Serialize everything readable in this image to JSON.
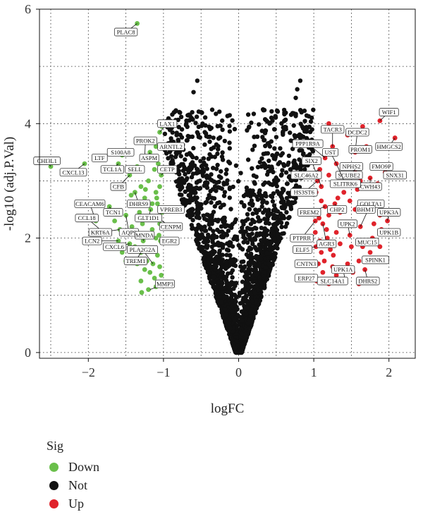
{
  "chart_data": {
    "type": "scatter",
    "xlabel": "logFC",
    "ylabel": "-log10 (adj.P.Val)",
    "xlim": [
      -2.65,
      2.35
    ],
    "ylim": [
      -0.1,
      6.0
    ],
    "xticks": [
      "−2",
      "−1",
      "0",
      "1",
      "2"
    ],
    "xtick_values": [
      -2,
      -1,
      0,
      1,
      2
    ],
    "yticks": [
      "0",
      "2",
      "4",
      "6"
    ],
    "ytick_values": [
      0,
      2,
      4,
      6
    ],
    "grid": true,
    "legend": {
      "title": "Sig",
      "placement": "bottom-left",
      "items": [
        {
          "label": "Down",
          "color": "#6abf4b"
        },
        {
          "label": "Not",
          "color": "#111111"
        },
        {
          "label": "Up",
          "color": "#e0232b"
        }
      ]
    },
    "series": [
      {
        "name": "Down",
        "color": "#6abf4b",
        "points": [
          [
            -1.35,
            5.75
          ],
          [
            -2.5,
            3.25
          ],
          [
            -2.55,
            3.35
          ],
          [
            -2.05,
            3.3
          ],
          [
            -1.7,
            3.5
          ],
          [
            -1.6,
            3.3
          ],
          [
            -1.55,
            3.45
          ],
          [
            -1.45,
            3.1
          ],
          [
            -1.35,
            3.25
          ],
          [
            -1.25,
            3.4
          ],
          [
            -1.18,
            3.5
          ],
          [
            -1.1,
            3.6
          ],
          [
            -1.05,
            3.85
          ],
          [
            -1.02,
            3.95
          ],
          [
            -1.3,
            2.9
          ],
          [
            -1.38,
            2.8
          ],
          [
            -1.43,
            2.75
          ],
          [
            -1.4,
            2.6
          ],
          [
            -1.25,
            2.7
          ],
          [
            -1.15,
            2.6
          ],
          [
            -1.1,
            2.8
          ],
          [
            -1.05,
            2.9
          ],
          [
            -1.03,
            3.1
          ],
          [
            -1.2,
            3.0
          ],
          [
            -1.12,
            3.2
          ],
          [
            -1.07,
            3.3
          ],
          [
            -1.5,
            2.4
          ],
          [
            -1.65,
            2.3
          ],
          [
            -1.72,
            2.55
          ],
          [
            -1.8,
            2.1
          ],
          [
            -1.9,
            2.3
          ],
          [
            -1.58,
            2.15
          ],
          [
            -1.35,
            2.1
          ],
          [
            -1.28,
            2.25
          ],
          [
            -1.2,
            2.35
          ],
          [
            -1.15,
            2.15
          ],
          [
            -1.1,
            2.0
          ],
          [
            -1.05,
            2.25
          ],
          [
            -1.02,
            2.45
          ],
          [
            -1.08,
            2.6
          ],
          [
            -1.45,
            1.9
          ],
          [
            -1.3,
            1.75
          ],
          [
            -1.22,
            1.6
          ],
          [
            -1.15,
            1.8
          ],
          [
            -1.08,
            1.7
          ],
          [
            -1.05,
            1.5
          ],
          [
            -1.03,
            1.35
          ],
          [
            -1.12,
            1.3
          ],
          [
            -1.25,
            1.45
          ],
          [
            -1.35,
            1.55
          ],
          [
            -1.2,
            1.1
          ],
          [
            -1.3,
            1.25
          ],
          [
            -1.1,
            1.15
          ],
          [
            -1.5,
            1.6
          ],
          [
            -1.6,
            1.95
          ],
          [
            -1.17,
            2.5
          ],
          [
            -1.32,
            2.45
          ],
          [
            -1.42,
            2.2
          ],
          [
            -1.04,
            1.95
          ],
          [
            -1.06,
            2.05
          ],
          [
            -1.14,
            1.55
          ],
          [
            -1.27,
            1.95
          ],
          [
            -1.38,
            1.85
          ],
          [
            -1.55,
            1.75
          ],
          [
            -1.09,
            2.7
          ],
          [
            -1.24,
            2.85
          ],
          [
            -1.18,
            1.4
          ],
          [
            -1.29,
            1.05
          ],
          [
            -1.07,
            1.2
          ]
        ]
      },
      {
        "name": "Up",
        "color": "#e0232b",
        "points": [
          [
            1.88,
            4.05
          ],
          [
            2.08,
            3.75
          ],
          [
            1.65,
            3.95
          ],
          [
            1.7,
            3.6
          ],
          [
            1.55,
            3.5
          ],
          [
            1.45,
            3.8
          ],
          [
            1.2,
            4.0
          ],
          [
            1.25,
            3.6
          ],
          [
            1.15,
            3.4
          ],
          [
            1.08,
            3.2
          ],
          [
            1.05,
            3.0
          ],
          [
            1.03,
            2.8
          ],
          [
            1.1,
            2.9
          ],
          [
            1.2,
            3.1
          ],
          [
            1.3,
            3.3
          ],
          [
            1.4,
            3.1
          ],
          [
            1.55,
            3.2
          ],
          [
            1.62,
            3.0
          ],
          [
            1.75,
            3.05
          ],
          [
            1.95,
            3.15
          ],
          [
            1.85,
            2.95
          ],
          [
            1.4,
            2.8
          ],
          [
            1.28,
            2.6
          ],
          [
            1.15,
            2.55
          ],
          [
            1.05,
            2.45
          ],
          [
            1.02,
            2.3
          ],
          [
            1.12,
            2.25
          ],
          [
            1.2,
            2.4
          ],
          [
            1.35,
            2.45
          ],
          [
            1.55,
            2.5
          ],
          [
            1.72,
            2.55
          ],
          [
            1.88,
            2.4
          ],
          [
            1.8,
            2.25
          ],
          [
            1.62,
            2.2
          ],
          [
            1.48,
            2.05
          ],
          [
            1.3,
            2.1
          ],
          [
            1.18,
            2.0
          ],
          [
            1.08,
            1.95
          ],
          [
            1.03,
            1.85
          ],
          [
            1.1,
            1.75
          ],
          [
            1.22,
            1.8
          ],
          [
            1.35,
            1.9
          ],
          [
            1.5,
            1.85
          ],
          [
            1.65,
            1.85
          ],
          [
            1.78,
            2.0
          ],
          [
            1.9,
            2.15
          ],
          [
            1.98,
            2.3
          ],
          [
            1.14,
            1.6
          ],
          [
            1.06,
            1.55
          ],
          [
            1.25,
            1.5
          ],
          [
            1.45,
            1.55
          ],
          [
            1.6,
            1.6
          ],
          [
            1.75,
            1.75
          ],
          [
            1.88,
            1.85
          ],
          [
            1.12,
            1.4
          ],
          [
            1.3,
            1.35
          ],
          [
            1.52,
            1.4
          ],
          [
            1.68,
            1.45
          ],
          [
            1.04,
            1.25
          ],
          [
            1.2,
            1.2
          ],
          [
            1.42,
            1.25
          ],
          [
            1.6,
            1.2
          ],
          [
            1.1,
            2.65
          ],
          [
            1.32,
            2.7
          ],
          [
            1.48,
            2.65
          ],
          [
            1.58,
            2.85
          ],
          [
            1.02,
            2.1
          ],
          [
            1.07,
            2.35
          ],
          [
            1.17,
            2.15
          ],
          [
            1.26,
            1.7
          ]
        ]
      }
    ],
    "annotations": [
      {
        "text": "PLAC8",
        "x": -1.35,
        "y": 5.75,
        "bx": -1.5,
        "by": 5.6
      },
      {
        "text": "CHI3L1",
        "x": -2.5,
        "y": 3.25,
        "bx": -2.55,
        "by": 3.35
      },
      {
        "text": "CXCL13",
        "x": -2.05,
        "y": 3.3,
        "bx": -2.2,
        "by": 3.15
      },
      {
        "text": "LTF",
        "x": -1.75,
        "y": 3.45,
        "bx": -1.85,
        "by": 3.4
      },
      {
        "text": "S100A8",
        "x": -1.55,
        "y": 3.45,
        "bx": -1.57,
        "by": 3.5
      },
      {
        "text": "TCL1A",
        "x": -1.6,
        "y": 3.3,
        "bx": -1.68,
        "by": 3.2
      },
      {
        "text": "SELL",
        "x": -1.35,
        "y": 3.25,
        "bx": -1.38,
        "by": 3.2
      },
      {
        "text": "CFB",
        "x": -1.45,
        "y": 3.1,
        "bx": -1.6,
        "by": 2.9
      },
      {
        "text": "PROK2",
        "x": -1.25,
        "y": 3.4,
        "bx": -1.24,
        "by": 3.7
      },
      {
        "text": "ASPM",
        "x": -1.18,
        "y": 3.5,
        "bx": -1.19,
        "by": 3.4
      },
      {
        "text": "LAX1",
        "x": -1.05,
        "y": 3.85,
        "bx": -0.95,
        "by": 4.0
      },
      {
        "text": "ARNTL2",
        "x": -1.02,
        "y": 3.6,
        "bx": -0.9,
        "by": 3.6
      },
      {
        "text": "CETP",
        "x": -1.03,
        "y": 3.1,
        "bx": -0.95,
        "by": 3.2
      },
      {
        "text": "CEACAM6",
        "x": -1.9,
        "y": 2.3,
        "bx": -1.98,
        "by": 2.6
      },
      {
        "text": "CCL18",
        "x": -1.8,
        "y": 2.1,
        "bx": -2.02,
        "by": 2.35
      },
      {
        "text": "TCN1",
        "x": -1.72,
        "y": 2.55,
        "bx": -1.67,
        "by": 2.45
      },
      {
        "text": "KRT6A",
        "x": -1.58,
        "y": 2.15,
        "bx": -1.84,
        "by": 2.1
      },
      {
        "text": "AQP9",
        "x": -1.5,
        "y": 2.4,
        "bx": -1.46,
        "by": 2.1
      },
      {
        "text": "DHRS9",
        "x": -1.38,
        "y": 2.8,
        "bx": -1.33,
        "by": 2.6
      },
      {
        "text": "GLT1D1",
        "x": -1.17,
        "y": 2.5,
        "bx": -1.2,
        "by": 2.35
      },
      {
        "text": "VPREB3",
        "x": -1.05,
        "y": 2.45,
        "bx": -0.9,
        "by": 2.5
      },
      {
        "text": "CENPM",
        "x": -1.02,
        "y": 2.3,
        "bx": -0.9,
        "by": 2.2
      },
      {
        "text": "LCN2",
        "x": -1.6,
        "y": 1.95,
        "bx": -1.95,
        "by": 1.95
      },
      {
        "text": "CXCL6",
        "x": -1.45,
        "y": 1.9,
        "bx": -1.65,
        "by": 1.85
      },
      {
        "text": "MNDA",
        "x": -1.27,
        "y": 1.95,
        "bx": -1.25,
        "by": 2.05
      },
      {
        "text": "PLA2G2A",
        "x": -1.14,
        "y": 1.55,
        "bx": -1.28,
        "by": 1.8
      },
      {
        "text": "EGR2",
        "x": -1.04,
        "y": 1.95,
        "bx": -0.92,
        "by": 1.95
      },
      {
        "text": "TREM1",
        "x": -1.3,
        "y": 1.75,
        "bx": -1.37,
        "by": 1.6
      },
      {
        "text": "MMP3",
        "x": -1.18,
        "y": 1.1,
        "bx": -0.98,
        "by": 1.2
      },
      {
        "text": "WIF1",
        "x": 1.88,
        "y": 4.05,
        "bx": 2.0,
        "by": 4.2
      },
      {
        "text": "TACR3",
        "x": 1.25,
        "y": 3.6,
        "bx": 1.25,
        "by": 3.9
      },
      {
        "text": "DCDC2",
        "x": 1.55,
        "y": 3.5,
        "bx": 1.58,
        "by": 3.85
      },
      {
        "text": "HMGCS2",
        "x": 2.08,
        "y": 3.75,
        "bx": 2.0,
        "by": 3.6
      },
      {
        "text": "PPP1R9A",
        "x": 1.15,
        "y": 3.4,
        "bx": 0.92,
        "by": 3.65
      },
      {
        "text": "UST",
        "x": 1.3,
        "y": 3.3,
        "bx": 1.22,
        "by": 3.5
      },
      {
        "text": "PROM1",
        "x": 1.7,
        "y": 3.6,
        "bx": 1.62,
        "by": 3.55
      },
      {
        "text": "SIX2",
        "x": 1.1,
        "y": 2.9,
        "bx": 0.97,
        "by": 3.35
      },
      {
        "text": "NPHS2",
        "x": 1.55,
        "y": 3.2,
        "bx": 1.5,
        "by": 3.25
      },
      {
        "text": "FMO9P",
        "x": 1.95,
        "y": 3.15,
        "bx": 1.9,
        "by": 3.25
      },
      {
        "text": "SLC46A2",
        "x": 1.08,
        "y": 3.2,
        "bx": 0.9,
        "by": 3.1
      },
      {
        "text": "SCUBE2",
        "x": 1.55,
        "y": 3.2,
        "bx": 1.47,
        "by": 3.1
      },
      {
        "text": "SNX31",
        "x": 1.95,
        "y": 3.15,
        "bx": 2.08,
        "by": 3.1
      },
      {
        "text": "CWH43",
        "x": 1.75,
        "y": 3.05,
        "bx": 1.75,
        "by": 2.9
      },
      {
        "text": "SLITRK6",
        "x": 1.3,
        "y": 3.3,
        "bx": 1.42,
        "by": 2.95
      },
      {
        "text": "HS3ST6",
        "x": 1.05,
        "y": 3.0,
        "bx": 0.87,
        "by": 2.8
      },
      {
        "text": "GOLTA1",
        "x": 1.62,
        "y": 2.2,
        "bx": 1.76,
        "by": 2.6
      },
      {
        "text": "CHP2",
        "x": 1.28,
        "y": 2.6,
        "bx": 1.31,
        "by": 2.5
      },
      {
        "text": "FREM2",
        "x": 1.15,
        "y": 2.55,
        "bx": 0.94,
        "by": 2.45
      },
      {
        "text": "BHMT",
        "x": 1.72,
        "y": 2.55,
        "bx": 1.69,
        "by": 2.5
      },
      {
        "text": "UPK3A",
        "x": 1.98,
        "y": 2.3,
        "bx": 2.0,
        "by": 2.45
      },
      {
        "text": "UPK2",
        "x": 1.48,
        "y": 2.05,
        "bx": 1.45,
        "by": 2.25
      },
      {
        "text": "UPK1B",
        "x": 1.88,
        "y": 2.15,
        "bx": 2.0,
        "by": 2.1
      },
      {
        "text": "PTPRR",
        "x": 1.02,
        "y": 2.3,
        "bx": 0.84,
        "by": 2.0
      },
      {
        "text": "AGR3",
        "x": 1.12,
        "y": 2.25,
        "bx": 1.17,
        "by": 1.9
      },
      {
        "text": "MUC15",
        "x": 1.78,
        "y": 2.0,
        "bx": 1.71,
        "by": 1.93
      },
      {
        "text": "ELF5",
        "x": 1.03,
        "y": 1.85,
        "bx": 0.85,
        "by": 1.8
      },
      {
        "text": "SPINK1",
        "x": 1.65,
        "y": 1.6,
        "bx": 1.82,
        "by": 1.62
      },
      {
        "text": "CNTN3",
        "x": 1.06,
        "y": 1.55,
        "bx": 0.9,
        "by": 1.55
      },
      {
        "text": "UPK1A",
        "x": 1.42,
        "y": 1.25,
        "bx": 1.39,
        "by": 1.45
      },
      {
        "text": "ERP27",
        "x": 1.04,
        "y": 1.25,
        "bx": 0.9,
        "by": 1.3
      },
      {
        "text": "SLC14A1",
        "x": 1.2,
        "y": 1.2,
        "bx": 1.25,
        "by": 1.25
      },
      {
        "text": "DHRS2",
        "x": 1.68,
        "y": 1.45,
        "bx": 1.72,
        "by": 1.25
      }
    ]
  }
}
